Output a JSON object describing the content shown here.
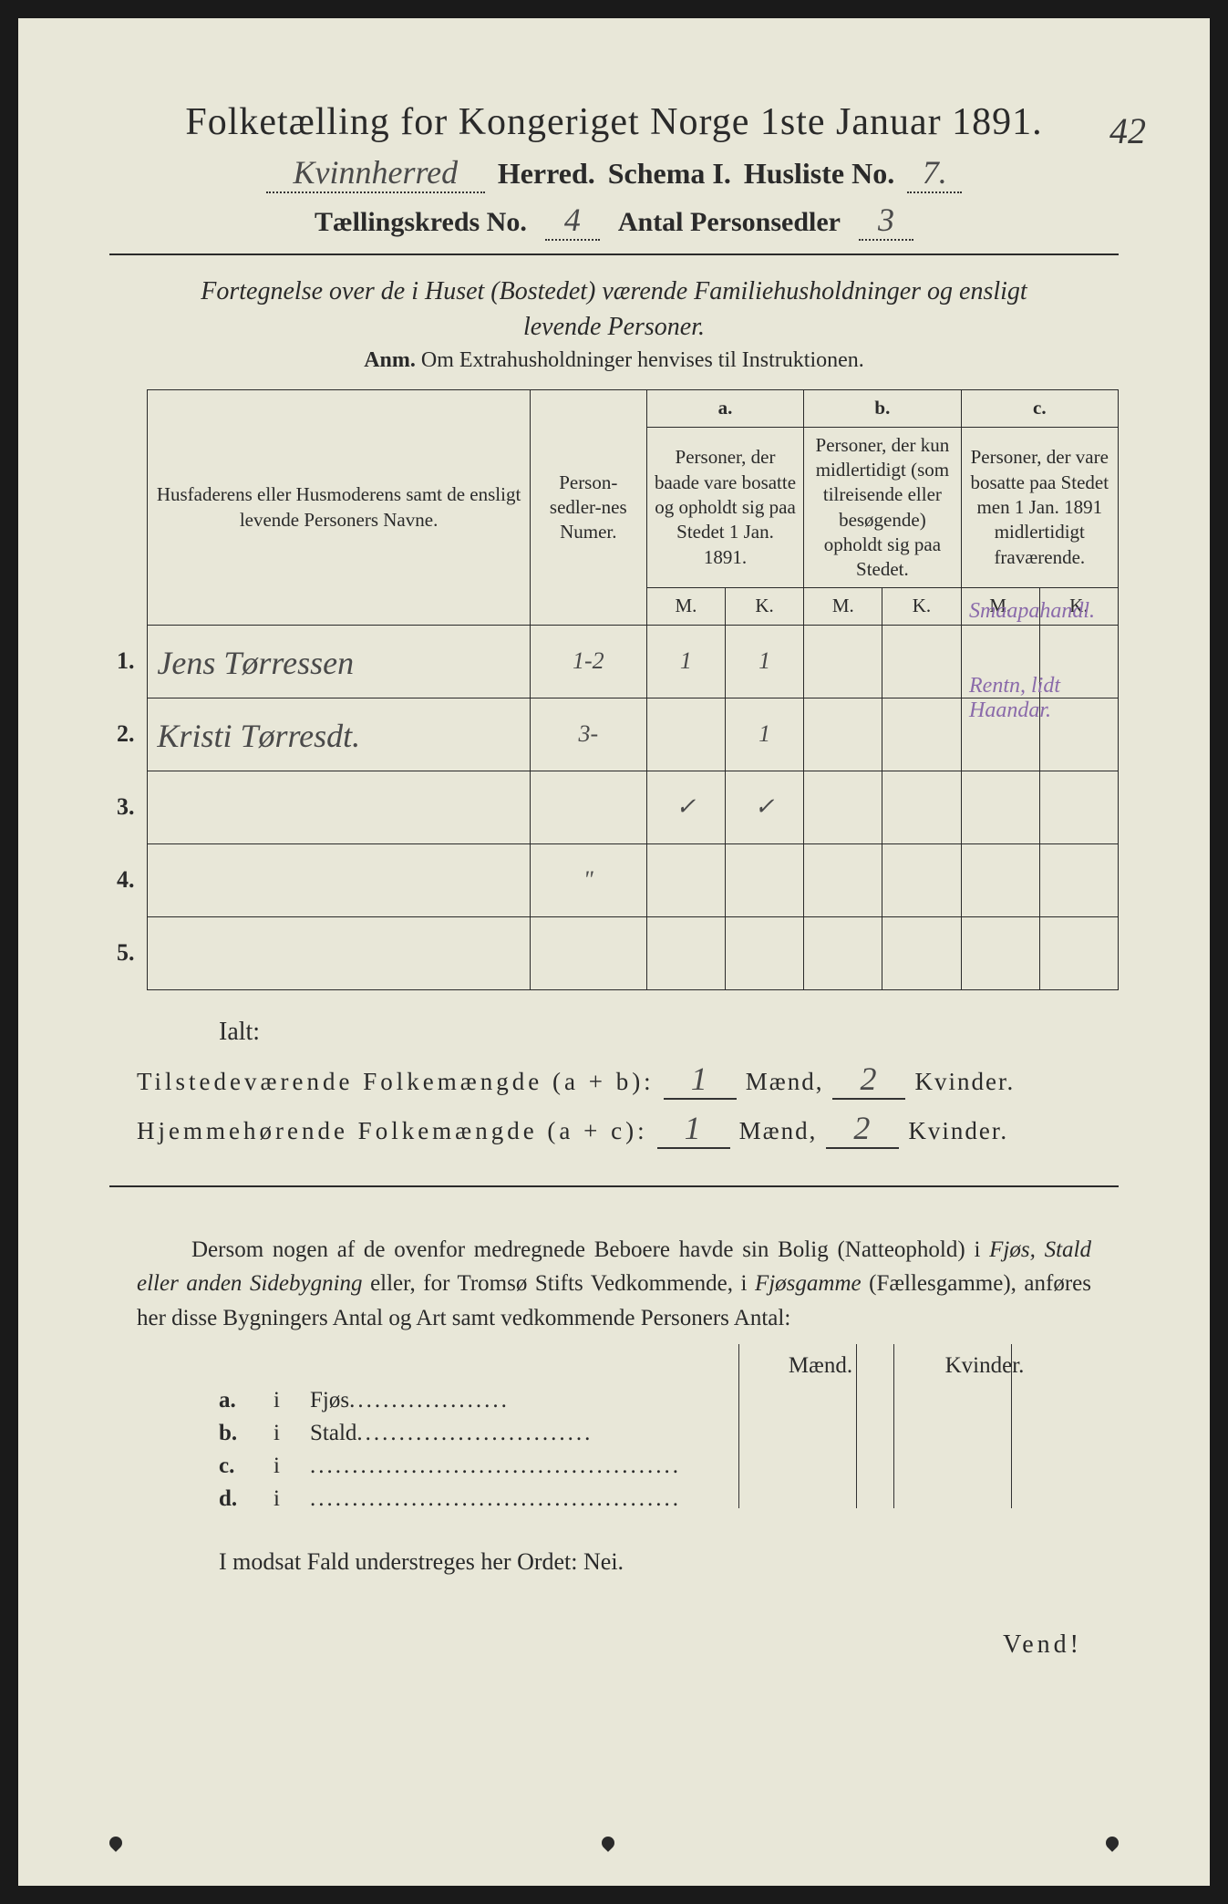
{
  "title": "Folketælling for Kongeriget Norge 1ste Januar 1891.",
  "corner_number": "42",
  "header": {
    "herred_value": "Kvinnherred",
    "herred_label": "Herred.",
    "schema_label": "Schema I.",
    "husliste_label": "Husliste No.",
    "husliste_value": "7.",
    "kreds_label": "Tællingskreds No.",
    "kreds_value": "4",
    "antal_label": "Antal Personsedler",
    "antal_value": "3"
  },
  "subtitle_line1": "Fortegnelse over de i Huset (Bostedet) værende Familiehusholdninger og ensligt",
  "subtitle_line2": "levende Personer.",
  "anm_bold": "Anm.",
  "anm_text": "Om Extrahusholdninger henvises til Instruktionen.",
  "table": {
    "col_name": "Husfaderens eller Husmoderens samt de ensligt levende Personers Navne.",
    "col_psn": "Person-sedler-nes Numer.",
    "col_a_head": "a.",
    "col_a": "Personer, der baade vare bosatte og opholdt sig paa Stedet 1 Jan. 1891.",
    "col_b_head": "b.",
    "col_b": "Personer, der kun midlertidigt (som tilreisende eller besøgende) opholdt sig paa Stedet.",
    "col_c_head": "c.",
    "col_c": "Personer, der vare bosatte paa Stedet men 1 Jan. 1891 midlertidigt fraværende.",
    "M": "M.",
    "K": "K.",
    "rows": [
      {
        "num": "1.",
        "name": "Jens Tørressen",
        "psn": "1-2",
        "aM": "1",
        "aK": "1",
        "bM": "",
        "bK": "",
        "cM": "",
        "cK": "",
        "note": "Smaapahandl."
      },
      {
        "num": "2.",
        "name": "Kristi Tørresdt.",
        "psn": "3-",
        "aM": "",
        "aK": "1",
        "bM": "",
        "bK": "",
        "cM": "",
        "cK": "",
        "note": "Rentn, lidt Haandar."
      },
      {
        "num": "3.",
        "name": "",
        "psn": "",
        "aM": "✓",
        "aK": "✓",
        "bM": "",
        "bK": "",
        "cM": "",
        "cK": "",
        "note": ""
      },
      {
        "num": "4.",
        "name": "",
        "psn": "\"",
        "aM": "",
        "aK": "",
        "bM": "",
        "bK": "",
        "cM": "",
        "cK": "",
        "note": ""
      },
      {
        "num": "5.",
        "name": "",
        "psn": "",
        "aM": "",
        "aK": "",
        "bM": "",
        "bK": "",
        "cM": "",
        "cK": "",
        "note": ""
      }
    ]
  },
  "ialt": "Ialt:",
  "summary1": {
    "label": "Tilstedeværende Folkemængde (a + b):",
    "m_val": "1",
    "m_lab": "Mænd,",
    "k_val": "2",
    "k_lab": "Kvinder."
  },
  "summary2": {
    "label": "Hjemmehørende Folkemængde (a + c):",
    "m_val": "1",
    "m_lab": "Mænd,",
    "k_val": "2",
    "k_lab": "Kvinder."
  },
  "para": {
    "t1": "Dersom nogen af de ovenfor medregnede Beboere havde sin Bolig (Natteophold) i ",
    "i1": "Fjøs, Stald eller anden Sidebygning",
    "t2": " eller, for Tromsø Stifts Vedkommende, i ",
    "i2": "Fjøsgamme",
    "t3": " (Fællesgamme), anføres her disse Bygningers Antal og Art samt vedkommende Personers Antal:"
  },
  "mk_maend": "Mænd.",
  "mk_kvinder": "Kvinder.",
  "subrows": [
    {
      "lab": "a.",
      "i": "i",
      "name": "Fjøs",
      "dots": "..................."
    },
    {
      "lab": "b.",
      "i": "i",
      "name": "Stald",
      "dots": "............................"
    },
    {
      "lab": "c.",
      "i": "i",
      "name": "",
      "dots": "............................................"
    },
    {
      "lab": "d.",
      "i": "i",
      "name": "",
      "dots": "............................................"
    }
  ],
  "nei_line": "I modsat Fald understreges her Ordet: Nei.",
  "vend": "Vend!",
  "colors": {
    "paper": "#e8e7d8",
    "ink": "#2a2a2a",
    "handwriting": "#4a4a4a",
    "purple_ink": "#8a6aaa"
  }
}
